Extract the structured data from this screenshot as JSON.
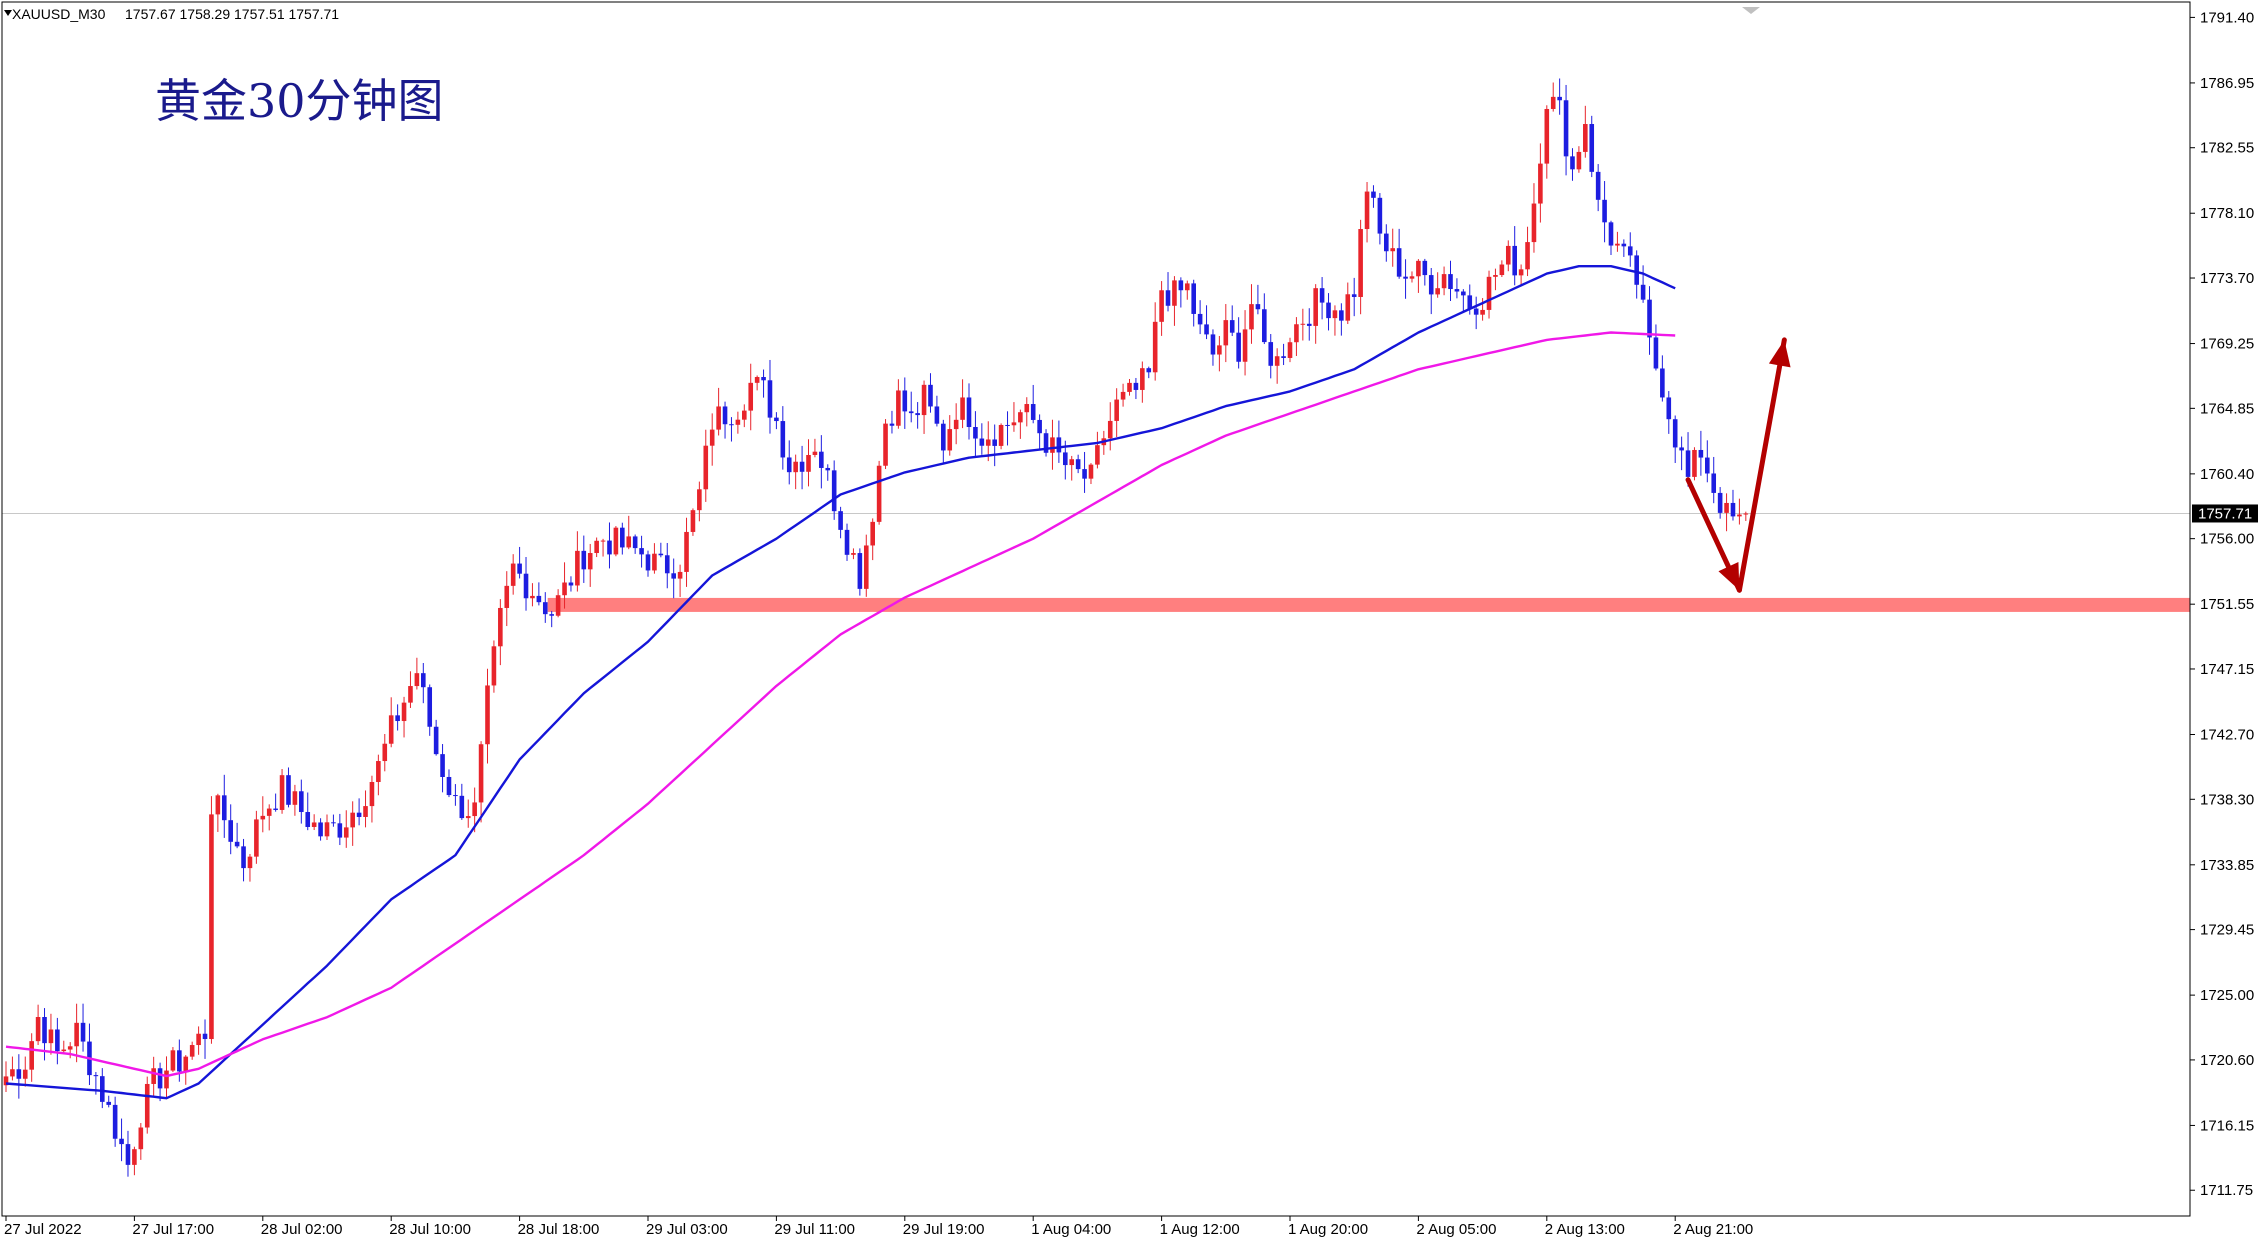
{
  "header": {
    "symbol_label": "XAUUSD_M30",
    "ohlc_text": "1757.67 1758.29 1757.51 1757.71"
  },
  "title": "黄金30分钟图",
  "current_price": {
    "value": 1757.71,
    "label": "1757.71"
  },
  "colors": {
    "bull": "#e8242b",
    "bear": "#1d1de0",
    "ma_fast": "#1515d8",
    "ma_slow": "#f018e8",
    "support": "#ff7f7f",
    "arrow": "#b30000",
    "grid_line": "#c8c8c8",
    "axis": "#000000",
    "price_tag_bg": "#000000"
  },
  "chart_data": {
    "type": "candlestick",
    "title": "黄金30分钟图",
    "xlabel": "",
    "ylabel": "",
    "ylim": [
      1710.0,
      1792.5
    ],
    "grid": false,
    "y_ticks": [
      1791.4,
      1786.95,
      1782.55,
      1778.1,
      1773.7,
      1769.25,
      1764.85,
      1760.4,
      1756.0,
      1751.55,
      1747.15,
      1742.7,
      1738.3,
      1733.85,
      1729.45,
      1725.0,
      1720.6,
      1716.15,
      1711.75
    ],
    "x_tick_labels": [
      {
        "label": "27 Jul 2022",
        "index": 0
      },
      {
        "label": "27 Jul 17:00",
        "index": 20
      },
      {
        "label": "28 Jul 02:00",
        "index": 40
      },
      {
        "label": "28 Jul 10:00",
        "index": 60
      },
      {
        "label": "28 Jul 18:00",
        "index": 80
      },
      {
        "label": "29 Jul 03:00",
        "index": 100
      },
      {
        "label": "29 Jul 11:00",
        "index": 120
      },
      {
        "label": "29 Jul 19:00",
        "index": 140
      },
      {
        "label": "1 Aug 04:00",
        "index": 160
      },
      {
        "label": "1 Aug 12:00",
        "index": 180
      },
      {
        "label": "1 Aug 20:00",
        "index": 200
      },
      {
        "label": "2 Aug 05:00",
        "index": 220
      },
      {
        "label": "2 Aug 13:00",
        "index": 240
      },
      {
        "label": "2 Aug 21:00",
        "index": 260
      }
    ],
    "candle_count": 272,
    "anchor_closes": [
      [
        0,
        1719.5
      ],
      [
        3,
        1720.5
      ],
      [
        5,
        1723.5
      ],
      [
        8,
        1721.0
      ],
      [
        11,
        1722.5
      ],
      [
        14,
        1719.5
      ],
      [
        17,
        1716.0
      ],
      [
        19,
        1713.5
      ],
      [
        21,
        1717.0
      ],
      [
        23,
        1719.0
      ],
      [
        25,
        1720.0
      ],
      [
        27,
        1720.5
      ],
      [
        29,
        1721.5
      ],
      [
        31,
        1722.5
      ],
      [
        32,
        1738.0
      ],
      [
        34,
        1737.0
      ],
      [
        37,
        1734.0
      ],
      [
        40,
        1737.5
      ],
      [
        43,
        1739.0
      ],
      [
        46,
        1737.5
      ],
      [
        49,
        1736.0
      ],
      [
        52,
        1736.5
      ],
      [
        55,
        1738.0
      ],
      [
        58,
        1740.5
      ],
      [
        60,
        1743.0
      ],
      [
        62,
        1745.0
      ],
      [
        64,
        1747.0
      ],
      [
        67,
        1741.5
      ],
      [
        70,
        1738.0
      ],
      [
        73,
        1737.5
      ],
      [
        75,
        1745.0
      ],
      [
        77,
        1750.5
      ],
      [
        79,
        1754.0
      ],
      [
        81,
        1753.0
      ],
      [
        83,
        1752.0
      ],
      [
        85,
        1751.0
      ],
      [
        87,
        1752.5
      ],
      [
        90,
        1755.0
      ],
      [
        93,
        1756.0
      ],
      [
        96,
        1755.5
      ],
      [
        99,
        1755.0
      ],
      [
        102,
        1754.0
      ],
      [
        105,
        1754.5
      ],
      [
        108,
        1759.0
      ],
      [
        110,
        1764.0
      ],
      [
        112,
        1764.5
      ],
      [
        114,
        1765.0
      ],
      [
        116,
        1766.5
      ],
      [
        118,
        1766.0
      ],
      [
        120,
        1764.0
      ],
      [
        122,
        1761.0
      ],
      [
        124,
        1761.5
      ],
      [
        126,
        1762.5
      ],
      [
        128,
        1760.0
      ],
      [
        131,
        1756.0
      ],
      [
        133,
        1753.5
      ],
      [
        135,
        1758.0
      ],
      [
        137,
        1764.0
      ],
      [
        139,
        1765.5
      ],
      [
        141,
        1764.0
      ],
      [
        143,
        1765.5
      ],
      [
        146,
        1762.5
      ],
      [
        148,
        1765.0
      ],
      [
        150,
        1764.5
      ],
      [
        152,
        1763.0
      ],
      [
        155,
        1763.5
      ],
      [
        158,
        1764.5
      ],
      [
        160,
        1764.0
      ],
      [
        163,
        1762.0
      ],
      [
        166,
        1760.5
      ],
      [
        169,
        1760.0
      ],
      [
        171,
        1763.0
      ],
      [
        173,
        1765.0
      ],
      [
        176,
        1766.0
      ],
      [
        178,
        1767.0
      ],
      [
        180,
        1773.0
      ],
      [
        182,
        1772.5
      ],
      [
        184,
        1773.0
      ],
      [
        186,
        1770.0
      ],
      [
        188,
        1768.5
      ],
      [
        190,
        1770.0
      ],
      [
        192,
        1769.0
      ],
      [
        194,
        1772.0
      ],
      [
        196,
        1769.0
      ],
      [
        198,
        1768.0
      ],
      [
        200,
        1770.0
      ],
      [
        202,
        1771.0
      ],
      [
        204,
        1772.0
      ],
      [
        206,
        1772.0
      ],
      [
        208,
        1771.5
      ],
      [
        210,
        1773.0
      ],
      [
        212,
        1780.0
      ],
      [
        214,
        1776.5
      ],
      [
        216,
        1775.0
      ],
      [
        218,
        1774.0
      ],
      [
        220,
        1774.0
      ],
      [
        222,
        1773.5
      ],
      [
        224,
        1774.0
      ],
      [
        226,
        1773.0
      ],
      [
        228,
        1772.0
      ],
      [
        230,
        1772.5
      ],
      [
        232,
        1774.0
      ],
      [
        234,
        1775.0
      ],
      [
        236,
        1774.5
      ],
      [
        238,
        1779.0
      ],
      [
        240,
        1786.0
      ],
      [
        242,
        1785.0
      ],
      [
        244,
        1781.0
      ],
      [
        246,
        1784.5
      ],
      [
        248,
        1778.5
      ],
      [
        250,
        1776.5
      ],
      [
        252,
        1775.0
      ],
      [
        254,
        1773.5
      ],
      [
        256,
        1769.0
      ],
      [
        258,
        1766.5
      ],
      [
        260,
        1763.0
      ],
      [
        262,
        1760.0
      ],
      [
        264,
        1762.0
      ],
      [
        266,
        1759.5
      ],
      [
        268,
        1757.5
      ],
      [
        270,
        1757.0
      ],
      [
        271,
        1757.71
      ]
    ],
    "moving_averages": [
      {
        "name": "",
        "color": "#1515d8",
        "anchors": [
          [
            0,
            1719.0
          ],
          [
            15,
            1718.5
          ],
          [
            25,
            1718.0
          ],
          [
            30,
            1719.0
          ],
          [
            40,
            1723.0
          ],
          [
            50,
            1727.0
          ],
          [
            60,
            1731.5
          ],
          [
            70,
            1734.5
          ],
          [
            80,
            1741.0
          ],
          [
            90,
            1745.5
          ],
          [
            100,
            1749.0
          ],
          [
            110,
            1753.5
          ],
          [
            120,
            1756.0
          ],
          [
            130,
            1759.0
          ],
          [
            140,
            1760.5
          ],
          [
            150,
            1761.5
          ],
          [
            160,
            1762.0
          ],
          [
            170,
            1762.5
          ],
          [
            180,
            1763.5
          ],
          [
            190,
            1765.0
          ],
          [
            200,
            1766.0
          ],
          [
            210,
            1767.5
          ],
          [
            220,
            1770.0
          ],
          [
            230,
            1772.0
          ],
          [
            240,
            1774.0
          ],
          [
            245,
            1774.5
          ],
          [
            250,
            1774.5
          ],
          [
            255,
            1774.0
          ],
          [
            260,
            1773.0
          ]
        ]
      },
      {
        "name": "",
        "color": "#f018e8",
        "anchors": [
          [
            0,
            1721.5
          ],
          [
            10,
            1721.0
          ],
          [
            20,
            1720.0
          ],
          [
            25,
            1719.5
          ],
          [
            30,
            1720.0
          ],
          [
            40,
            1722.0
          ],
          [
            50,
            1723.5
          ],
          [
            60,
            1725.5
          ],
          [
            70,
            1728.5
          ],
          [
            80,
            1731.5
          ],
          [
            90,
            1734.5
          ],
          [
            100,
            1738.0
          ],
          [
            110,
            1742.0
          ],
          [
            120,
            1746.0
          ],
          [
            130,
            1749.5
          ],
          [
            140,
            1752.0
          ],
          [
            150,
            1754.0
          ],
          [
            160,
            1756.0
          ],
          [
            170,
            1758.5
          ],
          [
            180,
            1761.0
          ],
          [
            190,
            1763.0
          ],
          [
            200,
            1764.5
          ],
          [
            210,
            1766.0
          ],
          [
            220,
            1767.5
          ],
          [
            230,
            1768.5
          ],
          [
            240,
            1769.5
          ],
          [
            250,
            1770.0
          ],
          [
            260,
            1769.8
          ]
        ]
      }
    ],
    "support_zone": {
      "price": 1751.5,
      "from_index": 85,
      "to_index": 272
    },
    "projection_arrows": [
      {
        "from": [
          262,
          1760.0
        ],
        "to": [
          270,
          1752.5
        ]
      },
      {
        "from": [
          270,
          1752.5
        ],
        "to": [
          277,
          1769.5
        ]
      }
    ]
  }
}
